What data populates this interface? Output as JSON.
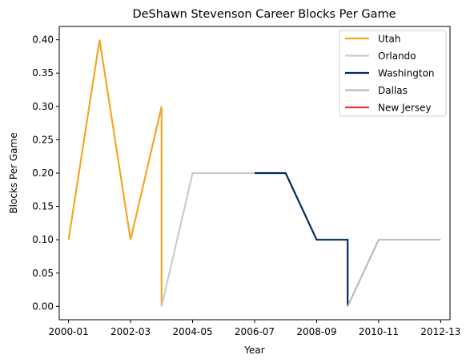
{
  "chart_data": {
    "type": "line",
    "title": "DeShawn Stevenson Career Blocks Per Game",
    "xlabel": "Year",
    "ylabel": "Blocks Per Game",
    "x_ticks": [
      "2000-01",
      "2002-03",
      "2004-05",
      "2006-07",
      "2008-09",
      "2010-11",
      "2012-13"
    ],
    "xlim": [
      -0.3,
      12.3
    ],
    "y_ticks": [
      "0.00",
      "0.05",
      "0.10",
      "0.15",
      "0.20",
      "0.25",
      "0.30",
      "0.35",
      "0.40"
    ],
    "ylim": [
      -0.02,
      0.42
    ],
    "grid": false,
    "legend_position": "top-right",
    "series": [
      {
        "name": "Utah",
        "color": "#f5a623",
        "x": [
          0,
          1,
          2,
          3,
          3
        ],
        "y": [
          0.1,
          0.4,
          0.1,
          0.3,
          0.0
        ]
      },
      {
        "name": "Orlando",
        "color": "#c4ced4",
        "x": [
          3,
          4,
          5,
          6
        ],
        "y": [
          0.0,
          0.2,
          0.2,
          0.2
        ]
      },
      {
        "name": "Washington",
        "color": "#002b5c",
        "x": [
          6,
          7,
          8,
          9,
          9
        ],
        "y": [
          0.2,
          0.2,
          0.1,
          0.1,
          0.0
        ]
      },
      {
        "name": "Dallas",
        "color": "#bbbbbb",
        "x": [
          9,
          10,
          11,
          12
        ],
        "y": [
          0.0,
          0.1,
          0.1,
          0.1
        ]
      },
      {
        "name": "New Jersey",
        "color": "#e03a3e",
        "x": [],
        "y": []
      }
    ]
  }
}
